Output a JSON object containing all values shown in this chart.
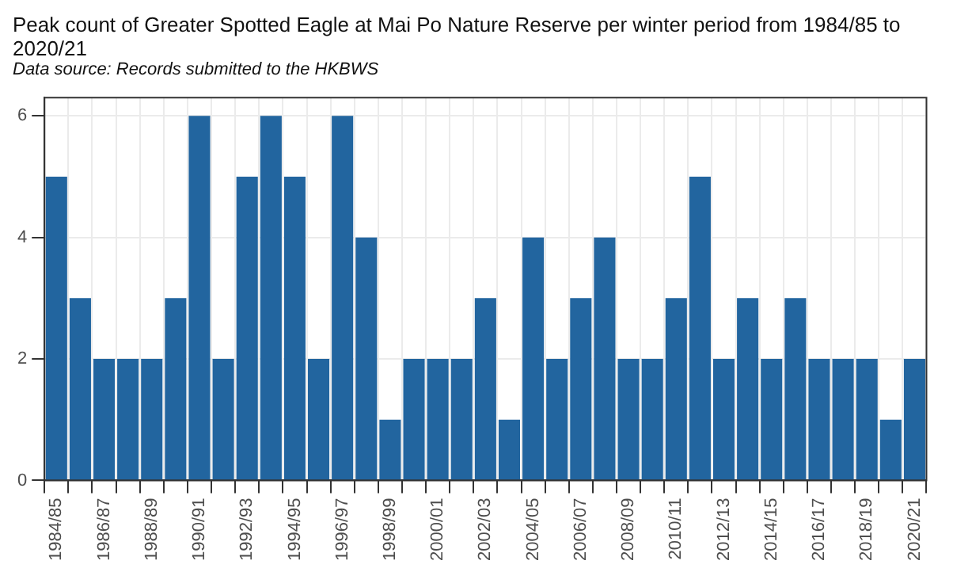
{
  "chart_data": {
    "type": "bar",
    "title": "Peak count of Greater Spotted Eagle at Mai Po Nature Reserve per winter period from 1984/85 to 2020/21",
    "subtitle": "Data source: Records submitted to the HKBWS",
    "categories": [
      "1984/85",
      null,
      "1986/87",
      null,
      "1988/89",
      null,
      "1990/91",
      null,
      "1992/93",
      null,
      "1994/95",
      null,
      "1996/97",
      null,
      "1998/99",
      null,
      "2000/01",
      null,
      "2002/03",
      null,
      "2004/05",
      null,
      "2006/07",
      null,
      "2008/09",
      null,
      "2010/11",
      null,
      "2012/13",
      null,
      "2014/15",
      null,
      "2016/17",
      null,
      "2018/19",
      null,
      "2020/21"
    ],
    "values": [
      5,
      3,
      2,
      2,
      2,
      3,
      6,
      2,
      5,
      6,
      5,
      2,
      6,
      4,
      1,
      2,
      2,
      2,
      3,
      1,
      4,
      2,
      3,
      4,
      2,
      2,
      3,
      5,
      2,
      3,
      2,
      3,
      2,
      2,
      2,
      1,
      2
    ],
    "color": "#22659f",
    "ylim": [
      0,
      6.3
    ],
    "yticks": [
      0,
      2,
      4,
      6
    ],
    "grid": true
  }
}
